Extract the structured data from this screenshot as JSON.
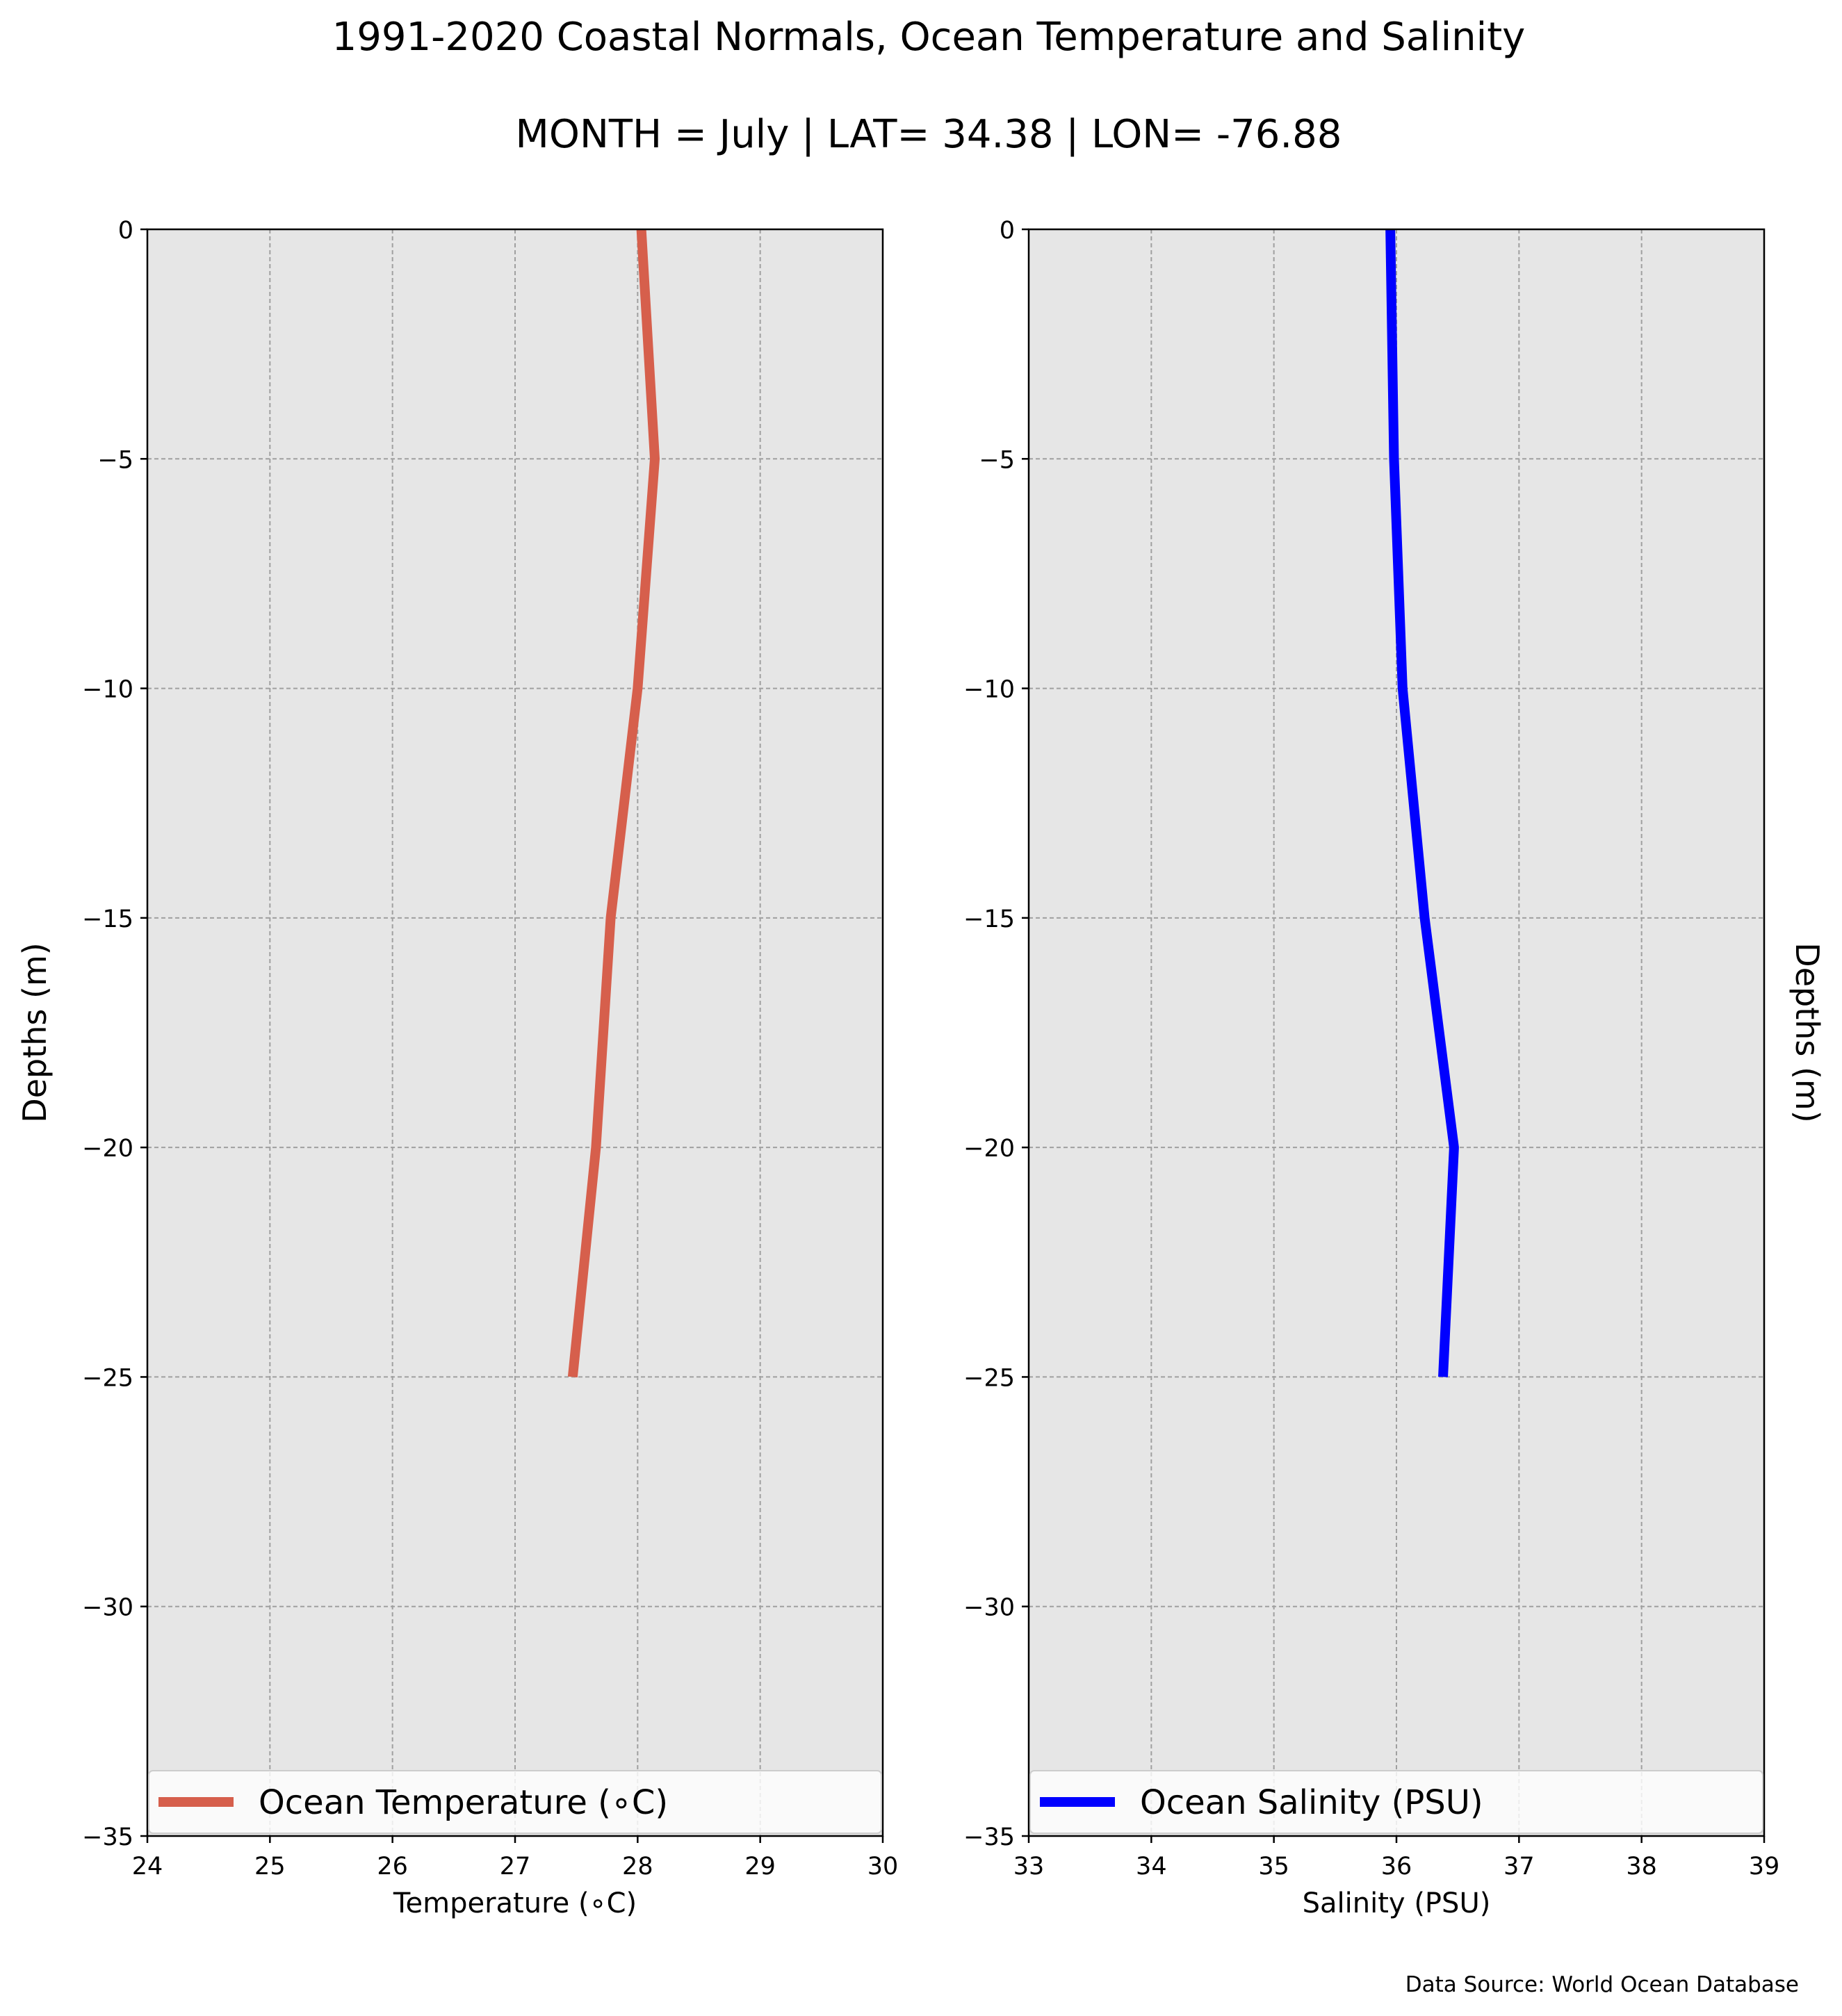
{
  "figure": {
    "title": "1991-2020 Coastal Normals, Ocean Temperature and Salinity",
    "subtitle": "MONTH = July | LAT= 34.38 | LON= -76.88",
    "footnote": "Data Source: World Ocean Database",
    "background_color": "#ffffff",
    "axes_background_color": "#e6e6e6"
  },
  "chart_data": [
    {
      "type": "line",
      "xlabel": "Temperature (∘C)",
      "ylabel": "Depths (m)",
      "ylabel_side": "left",
      "xlim": [
        24,
        30
      ],
      "ylim": [
        -35,
        0
      ],
      "xticks": [
        24,
        25,
        26,
        27,
        28,
        29,
        30
      ],
      "xtick_labels": [
        "24",
        "25",
        "26",
        "27",
        "28",
        "29",
        "30"
      ],
      "yticks": [
        0,
        -5,
        -10,
        -15,
        -20,
        -25,
        -30,
        -35
      ],
      "ytick_labels": [
        "0",
        "−5",
        "−10",
        "−15",
        "−20",
        "−25",
        "−30",
        "−35"
      ],
      "grid": true,
      "legend_position": "bottom",
      "series": [
        {
          "name": "Ocean Temperature (∘C)",
          "color": "#d65f4c",
          "x": [
            28.03,
            28.14,
            28.0,
            27.78,
            27.66,
            27.47
          ],
          "y": [
            0,
            -5,
            -10,
            -15,
            -20,
            -25
          ]
        }
      ]
    },
    {
      "type": "line",
      "xlabel": "Salinity (PSU)",
      "ylabel": "Depths (m)",
      "ylabel_side": "right",
      "xlim": [
        33,
        39
      ],
      "ylim": [
        -35,
        0
      ],
      "xticks": [
        33,
        34,
        35,
        36,
        37,
        38,
        39
      ],
      "xtick_labels": [
        "33",
        "34",
        "35",
        "36",
        "37",
        "38",
        "39"
      ],
      "yticks": [
        0,
        -5,
        -10,
        -15,
        -20,
        -25,
        -30,
        -35
      ],
      "ytick_labels": [
        "0",
        "−5",
        "−10",
        "−15",
        "−20",
        "−25",
        "−30",
        "−35"
      ],
      "grid": true,
      "legend_position": "bottom",
      "series": [
        {
          "name": "Ocean Salinity (PSU)",
          "color": "#0000ff",
          "x": [
            35.95,
            35.98,
            36.05,
            36.23,
            36.47,
            36.38
          ],
          "y": [
            0,
            -5,
            -10,
            -15,
            -20,
            -25
          ]
        }
      ]
    }
  ]
}
